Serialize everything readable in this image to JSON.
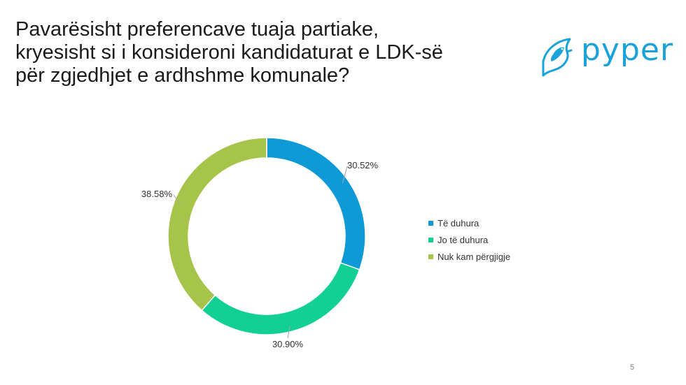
{
  "title_lines": [
    "Pavarësisht preferencave tuaja partiake,",
    "kryesisht si i konsideroni kandidaturat e LDK-së",
    "për zgjedhjet e ardhshme komunale?"
  ],
  "logo": {
    "text": "pyper",
    "icon": "bird-icon",
    "color": "#1aa3d9"
  },
  "page_number": "5",
  "chart_data": {
    "type": "pie",
    "donut": true,
    "categories": [
      "Të duhura",
      "Jo të duhura",
      "Nuk kam përgjigje"
    ],
    "values": [
      30.52,
      30.9,
      38.58
    ],
    "data_labels": [
      "30.52%",
      "30.90%",
      "38.58%"
    ],
    "colors": [
      "#0e9ad6",
      "#12d094",
      "#a6c44a"
    ],
    "start_angle": "12 o'clock",
    "direction": "clockwise",
    "legend_position": "right",
    "title": ""
  }
}
